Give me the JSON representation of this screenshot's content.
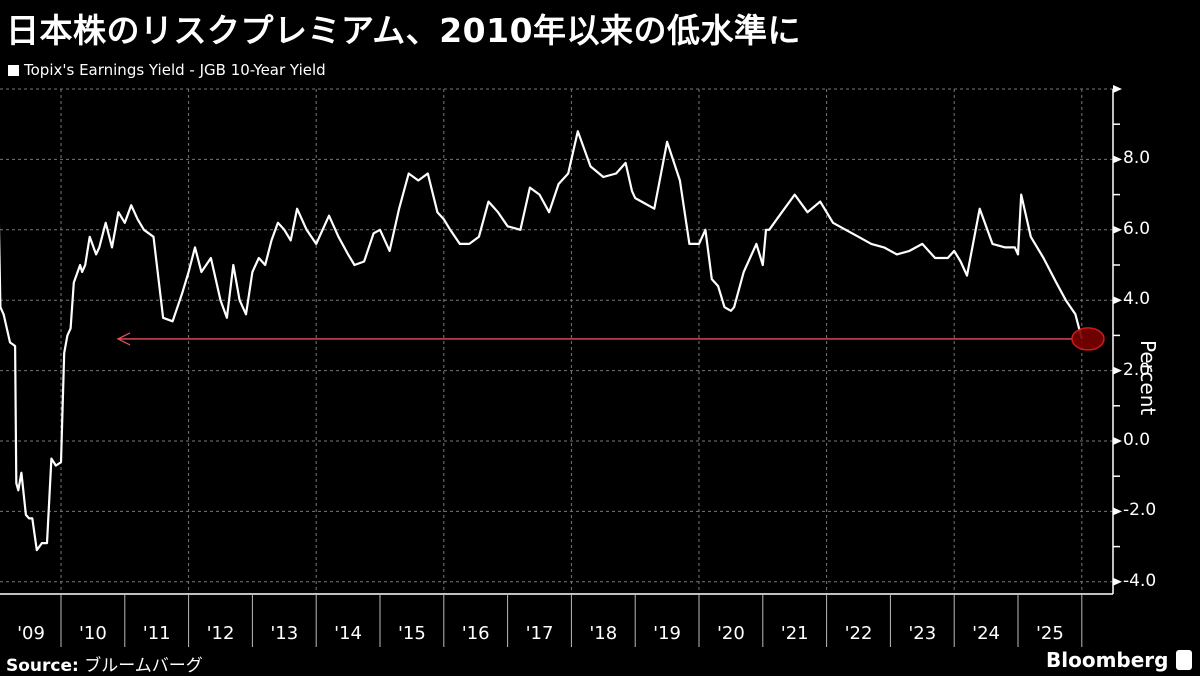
{
  "header": {
    "title": "日本株のリスクプレミアム、2010年以来の低水準に",
    "legend_label": "Topix's Earnings Yield - JGB 10-Year Yield"
  },
  "axis": {
    "y_unit": "Percent",
    "y_ticks": [
      "8.0",
      "6.0",
      "4.0",
      "2.0",
      "0.0",
      "-2.0",
      "-4.0"
    ],
    "x_ticks": [
      "'09",
      "'10",
      "'11",
      "'12",
      "'13",
      "'14",
      "'15",
      "'16",
      "'17",
      "'18",
      "'19",
      "'20",
      "'21",
      "'22",
      "'23",
      "'24",
      "'25"
    ]
  },
  "annotation": {
    "description": "Arrow from latest value (~2.9%) back to early-2010 level of similar value, with red highlight circle on latest point",
    "color": "#e0525a",
    "highlight_fill": "#7a0000"
  },
  "footer": {
    "source_label": "Source:",
    "source_value": "ブルームバーグ",
    "brand": "Bloomberg"
  },
  "colors": {
    "background": "#000000",
    "line": "#ffffff",
    "grid": "#777777",
    "arrow": "#e0525a"
  },
  "chart_data": {
    "type": "line",
    "title": "日本株のリスクプレミアム、2010年以来の低水準に",
    "xlabel": "",
    "ylabel": "Percent",
    "ylim": [
      -4.3,
      10
    ],
    "grid": true,
    "legend_position": "top-left",
    "series": [
      {
        "name": "Topix's Earnings Yield - JGB 10-Year Yield",
        "x": [
          2009.0,
          2009.02,
          2009.05,
          2009.1,
          2009.2,
          2009.28,
          2009.3,
          2009.33,
          2009.38,
          2009.45,
          2009.5,
          2009.55,
          2009.62,
          2009.7,
          2009.78,
          2009.85,
          2009.92,
          2010.0,
          2010.05,
          2010.1,
          2010.15,
          2010.2,
          2010.3,
          2010.33,
          2010.38,
          2010.45,
          2010.55,
          2010.6,
          2010.7,
          2010.8,
          2010.9,
          2011.0,
          2011.1,
          2011.2,
          2011.3,
          2011.45,
          2011.6,
          2011.75,
          2011.9,
          2012.0,
          2012.1,
          2012.2,
          2012.35,
          2012.5,
          2012.6,
          2012.7,
          2012.8,
          2012.9,
          2013.0,
          2013.1,
          2013.2,
          2013.3,
          2013.4,
          2013.5,
          2013.6,
          2013.7,
          2013.85,
          2014.0,
          2014.1,
          2014.2,
          2014.35,
          2014.5,
          2014.6,
          2014.75,
          2014.9,
          2015.0,
          2015.15,
          2015.3,
          2015.45,
          2015.6,
          2015.75,
          2015.9,
          2016.0,
          2016.1,
          2016.25,
          2016.4,
          2016.55,
          2016.7,
          2016.85,
          2017.0,
          2017.2,
          2017.35,
          2017.5,
          2017.65,
          2017.8,
          2017.95,
          2018.1,
          2018.3,
          2018.5,
          2018.7,
          2018.85,
          2018.95,
          2019.0,
          2019.1,
          2019.3,
          2019.5,
          2019.7,
          2019.85,
          2020.0,
          2020.1,
          2020.2,
          2020.3,
          2020.4,
          2020.5,
          2020.55,
          2020.7,
          2020.9,
          2021.0,
          2021.05,
          2021.1,
          2021.3,
          2021.5,
          2021.7,
          2021.9,
          2022.0,
          2022.1,
          2022.3,
          2022.5,
          2022.7,
          2022.9,
          2023.1,
          2023.3,
          2023.5,
          2023.7,
          2023.9,
          2024.0,
          2024.1,
          2024.2,
          2024.4,
          2024.6,
          2024.8,
          2024.95,
          2025.0,
          2025.05,
          2025.2,
          2025.4,
          2025.6,
          2025.75,
          2025.9,
          2026.0
        ],
        "values": [
          7.2,
          6.8,
          3.8,
          3.6,
          2.8,
          2.7,
          -1.2,
          -1.4,
          -0.9,
          -2.1,
          -2.2,
          -2.2,
          -3.1,
          -2.9,
          -2.9,
          -0.5,
          -0.7,
          -0.6,
          2.5,
          3.0,
          3.2,
          4.5,
          5.0,
          4.8,
          5.0,
          5.8,
          5.3,
          5.5,
          6.2,
          5.5,
          6.5,
          6.2,
          6.7,
          6.3,
          6.0,
          5.8,
          3.5,
          3.4,
          4.2,
          4.8,
          5.5,
          4.8,
          5.2,
          4.0,
          3.5,
          5.0,
          4.0,
          3.6,
          4.8,
          5.2,
          5.0,
          5.7,
          6.2,
          6.0,
          5.7,
          6.6,
          6.0,
          5.6,
          6.0,
          6.4,
          5.8,
          5.3,
          5.0,
          5.1,
          5.9,
          6.0,
          5.4,
          6.6,
          7.6,
          7.4,
          7.6,
          6.5,
          6.3,
          6.0,
          5.6,
          5.6,
          5.8,
          6.8,
          6.5,
          6.1,
          6.0,
          7.2,
          7.0,
          6.5,
          7.3,
          7.6,
          8.8,
          7.8,
          7.5,
          7.6,
          7.9,
          7.1,
          6.9,
          6.8,
          6.6,
          8.5,
          7.4,
          5.6,
          5.6,
          6.0,
          4.6,
          4.4,
          3.8,
          3.7,
          3.8,
          4.8,
          5.6,
          5.0,
          6.0,
          6.0,
          6.5,
          7.0,
          6.5,
          6.8,
          6.5,
          6.2,
          6.0,
          5.8,
          5.6,
          5.5,
          5.3,
          5.4,
          5.6,
          5.2,
          5.2,
          5.4,
          5.1,
          4.7,
          6.6,
          5.6,
          5.5,
          5.5,
          5.3,
          7.0,
          5.8,
          5.2,
          4.5,
          4.0,
          3.6,
          2.9
        ]
      }
    ]
  }
}
